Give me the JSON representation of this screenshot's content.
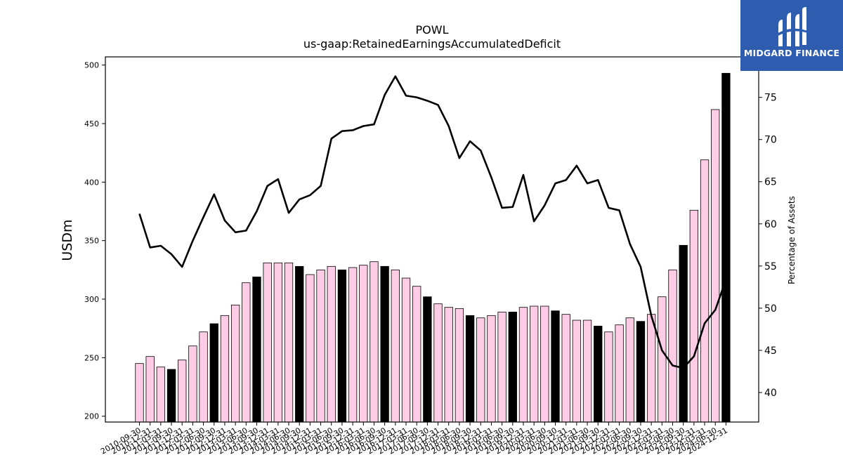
{
  "logo": {
    "text": "MIDGARD FINANCE",
    "icon": "m-logo-icon",
    "bg_color": "#2e5db0"
  },
  "chart_data": {
    "type": "bar+line",
    "title": "POWL",
    "subtitle": "us-gaap:RetainedEarningsAccumulatedDeficit",
    "ylabel": "USDm",
    "y2label": "Percentage of Assets",
    "ylim": [
      195,
      507
    ],
    "y2lim": [
      36.5,
      79.8
    ],
    "yticks": [
      200,
      250,
      300,
      350,
      400,
      450,
      500
    ],
    "y2ticks": [
      40,
      45,
      50,
      55,
      60,
      65,
      70,
      75
    ],
    "grid": false,
    "bar_colors": {
      "pink": "#ffcce5",
      "black": "#000000"
    },
    "x": [
      "2010-09-30",
      "2010-12-31",
      "2011-03-31",
      "2011-09-30",
      "2011-12-31",
      "2012-03-31",
      "2012-06-30",
      "2012-09-30",
      "2012-12-31",
      "2013-03-31",
      "2013-06-30",
      "2013-09-30",
      "2013-12-31",
      "2014-03-31",
      "2014-06-30",
      "2014-09-30",
      "2014-12-31",
      "2015-03-31",
      "2015-06-30",
      "2015-09-30",
      "2015-12-31",
      "2016-03-31",
      "2016-06-30",
      "2016-09-30",
      "2016-12-31",
      "2017-03-31",
      "2017-06-30",
      "2017-09-30",
      "2017-12-31",
      "2018-03-31",
      "2018-06-30",
      "2018-09-30",
      "2018-12-31",
      "2019-03-31",
      "2019-06-30",
      "2019-09-30",
      "2019-12-31",
      "2020-03-31",
      "2020-06-30",
      "2020-09-30",
      "2020-12-31",
      "2021-03-31",
      "2021-06-30",
      "2021-09-30",
      "2021-12-31",
      "2022-03-31",
      "2022-06-30",
      "2022-09-30",
      "2022-12-31",
      "2023-03-31",
      "2023-06-30",
      "2023-09-30",
      "2023-12-31",
      "2024-03-31",
      "2024-06-30",
      "2024-12-31"
    ],
    "xtick_labels": [
      "2010-09-30",
      "2010-12-31",
      "2011-03-31",
      "2011-09-30",
      "2011-12-31",
      "2012-03-31",
      "2012-06-30",
      "2012-09-30",
      "2012-12-31",
      "2013-03-31",
      "2013-06-30",
      "2013-09-30",
      "2013-12-31",
      "2014-03-31",
      "2014-06-30",
      "2014-09-30",
      "2014-12-31",
      "2015-03-31",
      "2015-06-30",
      "2015-09-30",
      "2015-12-31",
      "2016-03-31",
      "2016-06-30",
      "2016-09-30",
      "2016-12-31",
      "2017-03-31",
      "2017-06-30",
      "2017-09-30",
      "2017-12-31",
      "2018-03-31",
      "2018-06-30",
      "2018-09-30",
      "2018-12-31",
      "2019-03-31",
      "2019-06-30",
      "2019-09-30",
      "2019-12-31",
      "2020-03-31",
      "2020-06-30",
      "2020-09-30",
      "2020-12-31",
      "2021-03-31",
      "2021-06-30",
      "2021-09-30",
      "2021-12-31",
      "2022-03-31",
      "2022-06-30",
      "2022-09-30",
      "2022-12-31",
      "2023-03-31",
      "2023-06-30",
      "2023-09-30",
      "2023-12-31",
      "2024-03-31",
      "2024-06-30",
      "2024-12-31"
    ],
    "bars": {
      "values": [
        245,
        251,
        242,
        240,
        248,
        260,
        272,
        279,
        286,
        295,
        314,
        319,
        331,
        331,
        331,
        328,
        321,
        325,
        328,
        325,
        327,
        329,
        332,
        328,
        325,
        318,
        311,
        302,
        296,
        293,
        292,
        286,
        284,
        286,
        289,
        289,
        293,
        294,
        294,
        290,
        287,
        282,
        282,
        277,
        272,
        278,
        284,
        281,
        287,
        302,
        325,
        346,
        376,
        419,
        462,
        493
      ],
      "colors": [
        "pink",
        "pink",
        "pink",
        "black",
        "pink",
        "pink",
        "pink",
        "black",
        "pink",
        "pink",
        "pink",
        "black",
        "pink",
        "pink",
        "pink",
        "black",
        "pink",
        "pink",
        "pink",
        "black",
        "pink",
        "pink",
        "pink",
        "black",
        "pink",
        "pink",
        "pink",
        "black",
        "pink",
        "pink",
        "pink",
        "black",
        "pink",
        "pink",
        "pink",
        "black",
        "pink",
        "pink",
        "pink",
        "black",
        "pink",
        "pink",
        "pink",
        "black",
        "pink",
        "pink",
        "pink",
        "black",
        "pink",
        "pink",
        "pink",
        "black",
        "pink",
        "pink",
        "pink",
        "black"
      ]
    },
    "line": {
      "values": [
        61.2,
        57.2,
        57.4,
        56.4,
        54.9,
        58.0,
        60.8,
        63.5,
        60.4,
        59.0,
        59.2,
        61.5,
        64.5,
        65.3,
        61.3,
        62.9,
        63.4,
        64.5,
        70.1,
        71.0,
        71.1,
        71.6,
        71.8,
        75.3,
        77.5,
        75.2,
        75.0,
        74.6,
        74.1,
        71.6,
        67.8,
        69.8,
        68.7,
        65.5,
        61.9,
        62.0,
        65.8,
        60.3,
        62.2,
        64.8,
        65.2,
        66.9,
        64.8,
        65.2,
        61.9,
        61.6,
        57.6,
        54.9,
        49.1,
        45.0,
        43.2,
        42.9,
        44.3,
        48.2,
        49.8,
        53.4
      ],
      "color": "#000000"
    }
  }
}
